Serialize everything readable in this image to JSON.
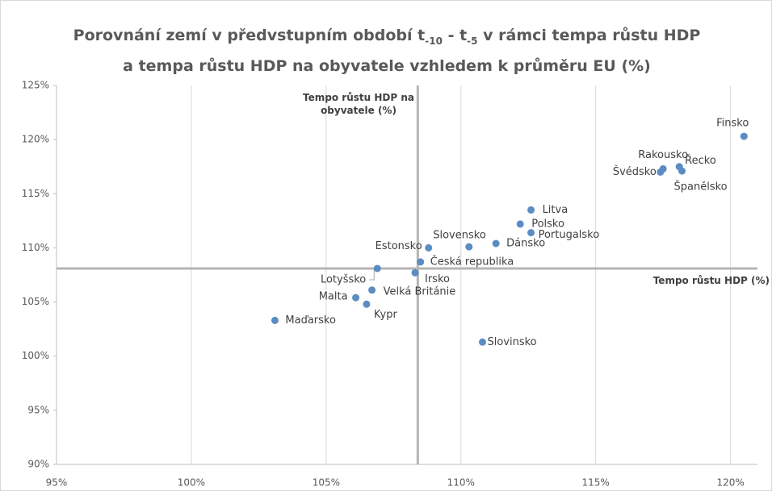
{
  "chart_data": {
    "type": "scatter",
    "title": [
      "Porovnání zemí v předvstupním období t",
      "-10",
      "- t",
      "-5",
      "v rámci tempa růstu HDP",
      "a tempa růstu HDP na obyvatele vzhledem k průměru EU (%)"
    ],
    "x_label": "Tempo růstu HDP (%)",
    "y_label": "Tempo růstu HDP na obyvatele (%)",
    "x_ref": 108.4,
    "y_ref": 108.1,
    "color": "#5b8cc2",
    "grid": true,
    "xlim": [
      95,
      121
    ],
    "ylim": [
      90,
      125
    ],
    "xticks": [
      {
        "value": 95,
        "label": "95%"
      },
      {
        "value": 100,
        "label": "100%"
      },
      {
        "value": 105,
        "label": "105%"
      },
      {
        "value": 110,
        "label": "110%"
      },
      {
        "value": 115,
        "label": "115%"
      },
      {
        "value": 120,
        "label": "120%"
      }
    ],
    "yticks": [
      {
        "value": 90,
        "label": "90%"
      },
      {
        "value": 95,
        "label": "95%"
      },
      {
        "value": 100,
        "label": "100%"
      },
      {
        "value": 105,
        "label": "105%"
      },
      {
        "value": 110,
        "label": "110%"
      },
      {
        "value": 115,
        "label": "115%"
      },
      {
        "value": 120,
        "label": "120%"
      },
      {
        "value": 125,
        "label": "125%"
      }
    ],
    "labels": [
      "Finsko",
      "Rakousko",
      "Švédsko",
      "Řecko",
      "Španělsko",
      "Litva",
      "Polsko",
      "Portugalsko",
      "Dánsko",
      "Slovensko",
      "Estonsko",
      "Česká republika",
      "Lotyšsko",
      "Irsko",
      "Velká Británie",
      "Malta",
      "Kypr",
      "Maďarsko",
      "Slovinsko"
    ],
    "x": [
      120.5,
      117.5,
      117.4,
      118.1,
      118.2,
      112.6,
      112.2,
      112.6,
      111.3,
      110.3,
      108.8,
      108.5,
      106.9,
      108.3,
      106.7,
      106.1,
      106.5,
      103.1,
      110.8
    ],
    "y": [
      120.3,
      117.3,
      117.0,
      117.5,
      117.1,
      113.5,
      112.2,
      111.4,
      110.4,
      110.1,
      110.0,
      108.7,
      108.1,
      107.7,
      106.1,
      105.4,
      104.8,
      103.3,
      101.3
    ]
  }
}
